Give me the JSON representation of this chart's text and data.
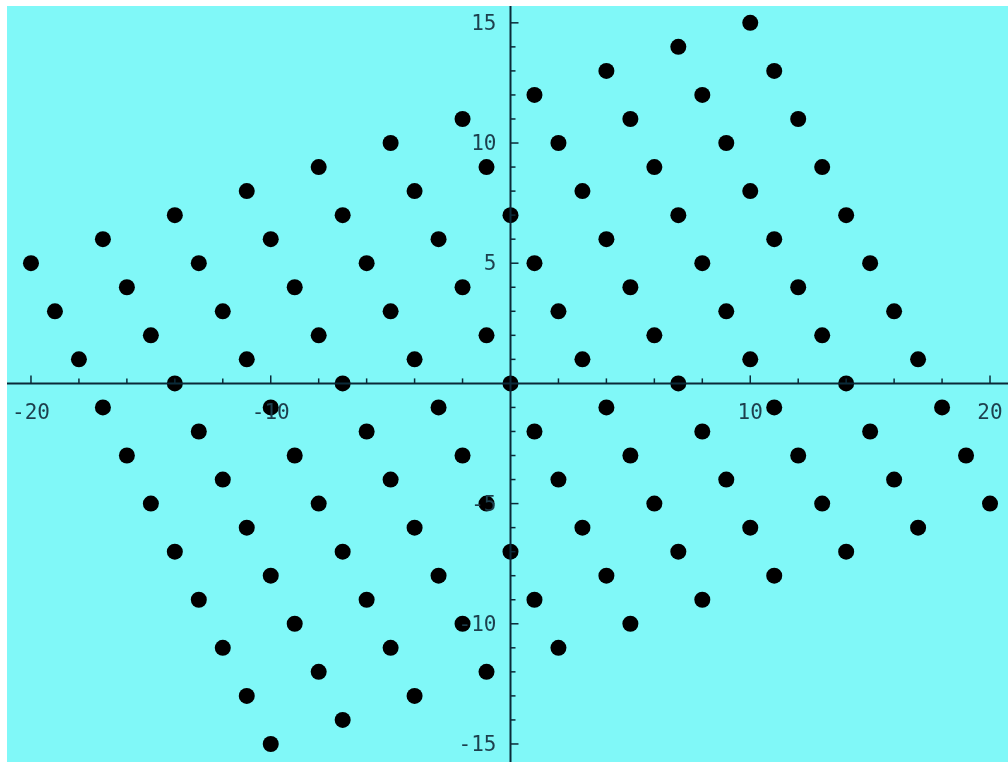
{
  "chart_data": {
    "type": "scatter",
    "color": "#000000",
    "marker": "circle",
    "x": [
      10,
      7,
      4,
      11,
      1,
      8,
      -2,
      5,
      12,
      -5,
      2,
      9,
      -8,
      -1,
      6,
      13,
      -11,
      -4,
      3,
      10,
      -14,
      -7,
      0,
      7,
      14,
      -17,
      -10,
      -3,
      4,
      11,
      -20,
      -13,
      -6,
      1,
      8,
      15,
      -16,
      -9,
      -2,
      5,
      12,
      -19,
      -12,
      -5,
      2,
      9,
      16,
      -15,
      -8,
      -1,
      6,
      13,
      -18,
      -11,
      -4,
      3,
      10,
      17,
      -14,
      -7,
      0,
      7,
      14,
      -17,
      -10,
      -3,
      4,
      11,
      18,
      -13,
      -6,
      1,
      8,
      15,
      -16,
      -9,
      -2,
      5,
      12,
      19,
      -12,
      -5,
      2,
      9,
      16,
      -15,
      -8,
      -1,
      6,
      13,
      20,
      -11,
      -4,
      3,
      10,
      17,
      -14,
      -7,
      0,
      7,
      14,
      -10,
      -3,
      4,
      11,
      -13,
      -6,
      1,
      8,
      -9,
      -2,
      5,
      -12,
      -5,
      2,
      -8,
      -1,
      -11,
      -4,
      -7,
      -10
    ],
    "values": [
      15,
      14,
      13,
      13,
      12,
      12,
      11,
      11,
      11,
      10,
      10,
      10,
      9,
      9,
      9,
      9,
      8,
      8,
      8,
      8,
      7,
      7,
      7,
      7,
      7,
      6,
      6,
      6,
      6,
      6,
      5,
      5,
      5,
      5,
      5,
      5,
      4,
      4,
      4,
      4,
      4,
      3,
      3,
      3,
      3,
      3,
      3,
      2,
      2,
      2,
      2,
      2,
      1,
      1,
      1,
      1,
      1,
      1,
      0,
      0,
      0,
      0,
      0,
      -1,
      -1,
      -1,
      -1,
      -1,
      -1,
      -2,
      -2,
      -2,
      -2,
      -2,
      -3,
      -3,
      -3,
      -3,
      -3,
      -3,
      -4,
      -4,
      -4,
      -4,
      -4,
      -5,
      -5,
      -5,
      -5,
      -5,
      -5,
      -6,
      -6,
      -6,
      -6,
      -6,
      -7,
      -7,
      -7,
      -7,
      -7,
      -8,
      -8,
      -8,
      -8,
      -9,
      -9,
      -9,
      -9,
      -10,
      -10,
      -10,
      -11,
      -11,
      -11,
      -12,
      -12,
      -13,
      -13,
      -14,
      -15
    ],
    "xlim": [
      -21,
      20.75
    ],
    "ylim": [
      -15.75,
      15.7
    ],
    "xticks": [
      -20,
      {
        "value": -18,
        "label": null
      },
      {
        "value": -16,
        "label": null
      },
      {
        "value": -14,
        "label": null
      },
      {
        "value": -12,
        "label": null
      },
      -10,
      {
        "value": -8,
        "label": null
      },
      {
        "value": -6,
        "label": null
      },
      {
        "value": -4,
        "label": null
      },
      {
        "value": -2,
        "label": null
      },
      {
        "value": 2,
        "label": null
      },
      {
        "value": 4,
        "label": null
      },
      {
        "value": 6,
        "label": null
      },
      {
        "value": 8,
        "label": null
      },
      10,
      {
        "value": 12,
        "label": null
      },
      {
        "value": 14,
        "label": null
      },
      {
        "value": 16,
        "label": null
      },
      {
        "value": 18,
        "label": null
      },
      20
    ],
    "yticks": [
      -15,
      {
        "value": -14,
        "label": null
      },
      {
        "value": -13,
        "label": null
      },
      {
        "value": -12,
        "label": null
      },
      {
        "value": -11,
        "label": null
      },
      -10,
      {
        "value": -9,
        "label": null
      },
      {
        "value": -8,
        "label": null
      },
      {
        "value": -7,
        "label": null
      },
      {
        "value": -6,
        "label": null
      },
      -5,
      {
        "value": -4,
        "label": null
      },
      {
        "value": -3,
        "label": null
      },
      {
        "value": -2,
        "label": null
      },
      {
        "value": -1,
        "label": null
      },
      {
        "value": 1,
        "label": null
      },
      {
        "value": 2,
        "label": null
      },
      {
        "value": 3,
        "label": null
      },
      {
        "value": 4,
        "label": null
      },
      5,
      {
        "value": 6,
        "label": null
      },
      {
        "value": 7,
        "label": null
      },
      {
        "value": 8,
        "label": null
      },
      {
        "value": 9,
        "label": null
      },
      10,
      {
        "value": 11,
        "label": null
      },
      {
        "value": 12,
        "label": null
      },
      {
        "value": 13,
        "label": null
      },
      {
        "value": 14,
        "label": null
      },
      15
    ]
  }
}
